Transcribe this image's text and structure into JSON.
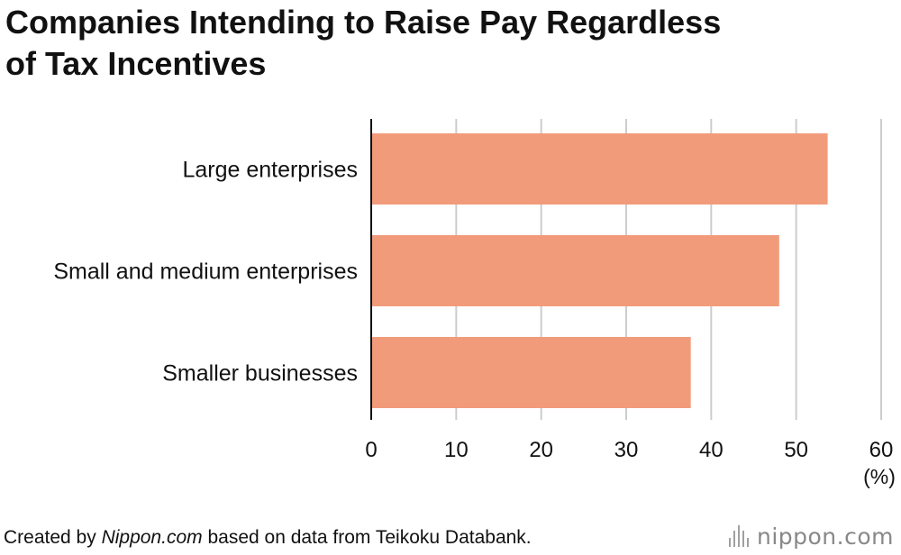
{
  "title_lines": [
    "Companies Intending to Raise Pay Regardless",
    "of Tax Incentives"
  ],
  "footer": {
    "prefix": "Created by ",
    "source_name": "Nippon.com",
    "suffix": " based on data from Teikoku Databank."
  },
  "logo": {
    "text": "nippon.com"
  },
  "colors": {
    "bar": "#f29b7b",
    "grid": "#cccccc",
    "axis": "#111111"
  },
  "chart_data": {
    "type": "bar",
    "orientation": "horizontal",
    "categories": [
      "Large enterprises",
      "Small and medium enterprises",
      "Smaller businesses"
    ],
    "values": [
      53.7,
      48.0,
      37.6
    ],
    "xlim": [
      0,
      60
    ],
    "xticks": [
      0,
      10,
      20,
      30,
      40,
      50,
      60
    ],
    "xunit": "(%)",
    "grid": true
  }
}
